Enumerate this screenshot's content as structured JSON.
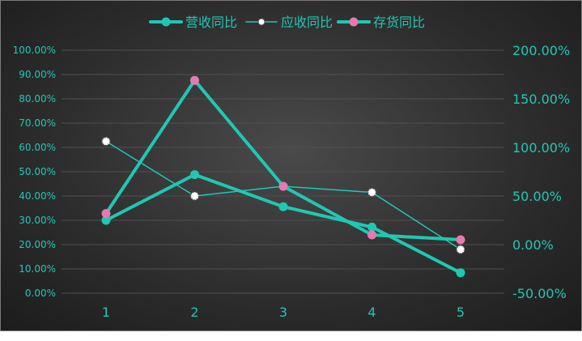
{
  "colors": {
    "accent": "#1fc8b4",
    "pink": "#e879b0",
    "white": "#ffffff",
    "grid": "#505050"
  },
  "chart_data": {
    "type": "line",
    "categories": [
      "1",
      "2",
      "3",
      "4",
      "5"
    ],
    "left_axis": {
      "ylim": [
        0,
        100
      ],
      "ticks": [
        "0.00%",
        "10.00%",
        "20.00%",
        "30.00%",
        "40.00%",
        "50.00%",
        "60.00%",
        "70.00%",
        "80.00%",
        "90.00%",
        "100.00%"
      ]
    },
    "right_axis": {
      "ylim": [
        -50,
        200
      ],
      "ticks": [
        "-50.00%",
        "0.00%",
        "50.00%",
        "100.00%",
        "150.00%",
        "200.00%"
      ]
    },
    "grid": true,
    "legend_position": "top-center",
    "series": [
      {
        "name": "营收同比",
        "axis": "right",
        "values": [
          25,
          72,
          39,
          18,
          -29
        ],
        "color": "#1fc8b4",
        "marker_color": "#1fc8b4",
        "line_width": 4
      },
      {
        "name": "应收同比",
        "axis": "left",
        "values": [
          62.5,
          40,
          44,
          41.5,
          18
        ],
        "color": "#1fc8b4",
        "marker_color": "#ffffff",
        "line_width": 1.5
      },
      {
        "name": "存货同比",
        "axis": "right",
        "values": [
          32,
          169,
          60,
          10,
          5
        ],
        "color": "#1fc8b4",
        "marker_color": "#e879b0",
        "line_width": 4
      }
    ]
  }
}
